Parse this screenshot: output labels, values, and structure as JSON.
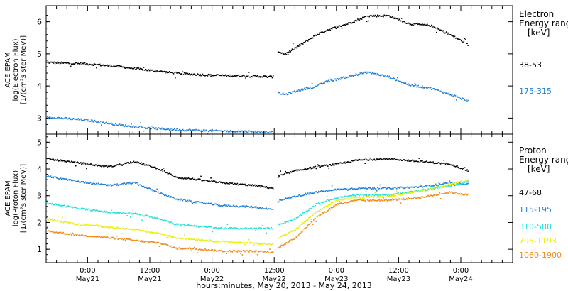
{
  "chart_data": {
    "type": "scatter",
    "xlabel": "hours:minutes, May 20, 2013 - May 24, 2013",
    "x_unit": "hours since May 21 00:00 (2013)",
    "xlim": [
      -8,
      82
    ],
    "x_ticks": [
      {
        "x": 0,
        "time": "0:00",
        "date": "May21"
      },
      {
        "x": 12,
        "time": "12:00",
        "date": "May21"
      },
      {
        "x": 24,
        "time": "0:00",
        "date": "May22"
      },
      {
        "x": 36,
        "time": "12:00",
        "date": "May22"
      },
      {
        "x": 48,
        "time": "0:00",
        "date": "May23"
      },
      {
        "x": 60,
        "time": "12:00",
        "date": "May23"
      },
      {
        "x": 72,
        "time": "0:00",
        "date": "May24"
      }
    ],
    "panels": [
      {
        "key": "electron",
        "ylabel_lines": [
          "ACE EPAM",
          "log(Electron Flux)",
          "[1/(cm²s ster MeV)]"
        ],
        "ylim": [
          2.5,
          6.5
        ],
        "yticks": [
          3,
          4,
          5,
          6
        ],
        "legend": {
          "title_lines": [
            "Electron",
            "Energy ranges",
            "[keV]"
          ]
        },
        "series": [
          {
            "name": "38-53",
            "color": "#000000",
            "x": [
              -8,
              0,
              6,
              12,
              18,
              24,
              30,
              35.8,
              36.6,
              38,
              41,
              44,
              46,
              50,
              54,
              58,
              62,
              66,
              70,
              73.3
            ],
            "y": [
              4.75,
              4.7,
              4.62,
              4.5,
              4.4,
              4.35,
              4.33,
              4.3,
              5.1,
              5.0,
              5.3,
              5.6,
              5.75,
              5.95,
              6.2,
              6.2,
              5.95,
              5.9,
              5.6,
              5.3
            ]
          },
          {
            "name": "175-315",
            "color": "#1e7fd6",
            "x": [
              -8,
              0,
              6,
              12,
              18,
              24,
              30,
              35.8,
              36.6,
              38,
              41,
              44,
              46,
              50,
              54,
              58,
              62,
              66,
              70,
              73.3
            ],
            "y": [
              3.05,
              2.95,
              2.8,
              2.7,
              2.65,
              2.62,
              2.6,
              2.58,
              3.8,
              3.75,
              3.9,
              4.0,
              4.15,
              4.3,
              4.45,
              4.3,
              4.05,
              3.95,
              3.75,
              3.55
            ]
          }
        ]
      },
      {
        "key": "proton",
        "ylabel_lines": [
          "ACE EPAM",
          "log(Proton Flux)",
          "[1/(cm²s ster MeV)]"
        ],
        "ylim": [
          0.5,
          5.3
        ],
        "yticks": [
          1,
          2,
          3,
          4,
          5
        ],
        "legend": {
          "title_lines": [
            "Proton",
            "Energy ranges",
            "[keV]"
          ]
        },
        "series": [
          {
            "name": "47-68",
            "color": "#000000",
            "x": [
              -8,
              -2,
              4,
              9,
              14,
              17,
              20,
              26,
              32,
              35.8,
              36.8,
              40,
              44,
              48,
              52,
              58,
              64,
              70,
              73.3
            ],
            "y": [
              4.4,
              4.25,
              4.1,
              4.3,
              4.0,
              3.7,
              3.65,
              3.5,
              3.4,
              3.3,
              3.75,
              3.95,
              4.1,
              4.2,
              4.35,
              4.4,
              4.3,
              4.2,
              3.95
            ]
          },
          {
            "name": "115-195",
            "color": "#1e7fd6",
            "x": [
              -8,
              -2,
              4,
              9,
              14,
              17,
              20,
              26,
              32,
              35.8,
              36.8,
              40,
              44,
              48,
              52,
              58,
              64,
              70,
              73.3
            ],
            "y": [
              3.75,
              3.55,
              3.4,
              3.5,
              3.1,
              2.9,
              2.8,
              2.65,
              2.6,
              2.5,
              2.85,
              3.0,
              3.15,
              3.25,
              3.3,
              3.3,
              3.35,
              3.5,
              3.45
            ]
          },
          {
            "name": "310-580",
            "color": "#22e0d8",
            "x": [
              -8,
              -2,
              4,
              9,
              14,
              17,
              20,
              26,
              32,
              35.8,
              36.8,
              40,
              44,
              48,
              52,
              58,
              64,
              70,
              73.3
            ],
            "y": [
              2.75,
              2.55,
              2.4,
              2.35,
              2.15,
              1.95,
              1.9,
              1.8,
              1.8,
              1.8,
              1.95,
              2.15,
              2.7,
              2.95,
              3.05,
              3.05,
              3.2,
              3.4,
              3.55
            ]
          },
          {
            "name": "795-1193",
            "color": "#e8f000",
            "x": [
              -8,
              -2,
              4,
              9,
              14,
              17,
              20,
              26,
              32,
              35.8,
              36.8,
              40,
              44,
              48,
              52,
              58,
              64,
              70,
              73.3
            ],
            "y": [
              2.15,
              1.95,
              1.85,
              1.75,
              1.6,
              1.45,
              1.4,
              1.3,
              1.25,
              1.2,
              1.45,
              1.75,
              2.4,
              2.85,
              2.95,
              3.0,
              3.2,
              3.45,
              3.6
            ]
          },
          {
            "name": "1060-1900",
            "color": "#f08a18",
            "x": [
              -8,
              -2,
              4,
              9,
              14,
              17,
              20,
              26,
              32,
              35.8,
              36.8,
              40,
              44,
              48,
              52,
              58,
              64,
              70,
              73.3
            ],
            "y": [
              1.7,
              1.55,
              1.45,
              1.35,
              1.25,
              1.05,
              1.05,
              0.95,
              0.95,
              0.9,
              1.1,
              1.45,
              2.2,
              2.7,
              2.85,
              2.85,
              2.95,
              3.15,
              3.05
            ]
          }
        ]
      }
    ]
  }
}
